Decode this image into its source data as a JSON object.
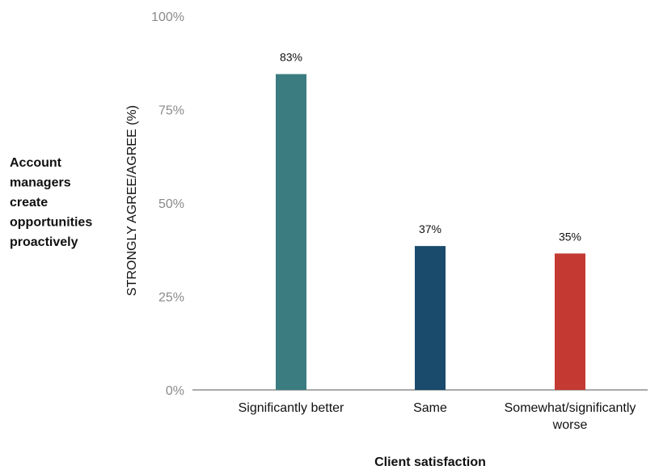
{
  "chart_data": {
    "type": "bar",
    "categories": [
      "Significantly better",
      "Same",
      "Somewhat/significantly worse"
    ],
    "category_lines": [
      [
        "Significantly better"
      ],
      [
        "Same"
      ],
      [
        "Somewhat/significantly",
        "worse"
      ]
    ],
    "values": [
      83,
      37,
      35
    ],
    "value_labels": [
      "83%",
      "37%",
      "35%"
    ],
    "bar_colors": [
      "#3a7c80",
      "#1a4a6c",
      "#c43a32"
    ],
    "ylim": [
      0,
      100
    ],
    "yticks": [
      0,
      25,
      50,
      75,
      100
    ],
    "ytick_labels": [
      "0%",
      "25%",
      "50%",
      "75%",
      "100%"
    ],
    "ylabel": "STRONGLY AGREE/AGREE (%)",
    "xlabel": "Client satisfaction",
    "row_label_lines": [
      "Account",
      "managers",
      "create",
      "opportunities",
      "proactively"
    ],
    "grid": false,
    "legend": "none"
  }
}
